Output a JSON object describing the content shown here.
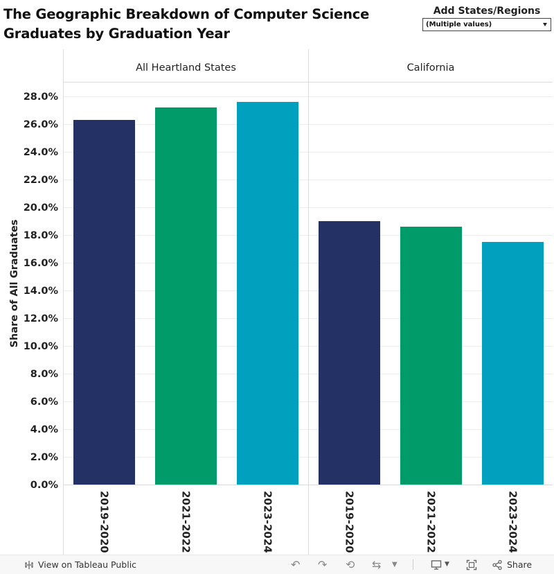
{
  "title_lines": [
    "The Geographic Breakdown of Computer Science",
    "Graduates by Graduation Year"
  ],
  "filter": {
    "label": "Add States/Regions",
    "value": "(Multiple values)"
  },
  "colors": {
    "2019-2020": "#243164",
    "2021-2022": "#019b6a",
    "2023-2024": "#00a0be",
    "gridline": "#ececec",
    "divider": "#dcdcdc"
  },
  "chart_data": {
    "type": "bar",
    "ylabel": "Share of All Graduates",
    "ylim": [
      0,
      0.29
    ],
    "yticks": [
      "0.0%",
      "2.0%",
      "4.0%",
      "6.0%",
      "8.0%",
      "10.0%",
      "12.0%",
      "14.0%",
      "16.0%",
      "18.0%",
      "20.0%",
      "22.0%",
      "24.0%",
      "26.0%",
      "28.0%"
    ],
    "ytick_values": [
      0,
      0.02,
      0.04,
      0.06,
      0.08,
      0.1,
      0.12,
      0.14,
      0.16,
      0.18,
      0.2,
      0.22,
      0.24,
      0.26,
      0.28
    ],
    "categories": [
      "2019-2020",
      "2021-2022",
      "2023-2024"
    ],
    "panels": [
      {
        "name": "All Heartland States",
        "values": [
          0.263,
          0.272,
          0.276
        ]
      },
      {
        "name": "California",
        "values": [
          0.19,
          0.186,
          0.175
        ]
      }
    ]
  },
  "toolbar": {
    "view_label": "View on Tableau Public",
    "share_label": "Share"
  },
  "icons": [
    "tableau-logo-icon",
    "undo-icon",
    "redo-icon",
    "revert-icon",
    "refresh-icon",
    "dropdown-icon",
    "device-icon",
    "fullscreen-icon",
    "share-icon"
  ]
}
